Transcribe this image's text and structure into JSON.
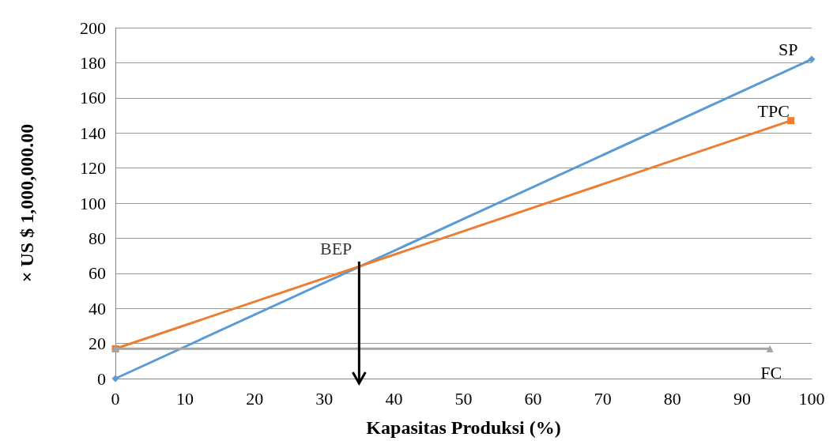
{
  "chart_data": {
    "type": "line",
    "xlabel": "Kapasitas Produksi (%)",
    "ylabel": "× US $ 1,000,000.00",
    "series": [
      {
        "name": "SP",
        "color": "#5b9bd5",
        "x": [
          0,
          100
        ],
        "values": [
          0,
          182
        ],
        "marker": "diamond"
      },
      {
        "name": "TPC",
        "color": "#ed7d31",
        "x": [
          0,
          97
        ],
        "values": [
          17,
          147
        ],
        "marker": "square"
      },
      {
        "name": "FC",
        "color": "#a5a5a5",
        "x": [
          0,
          94
        ],
        "values": [
          17,
          17
        ],
        "marker": "triangle"
      }
    ],
    "annotations": [
      {
        "text": "BEP",
        "x": 35,
        "y": 64
      }
    ],
    "xlim": [
      0,
      100
    ],
    "xticks": [
      0,
      10,
      20,
      30,
      40,
      50,
      60,
      70,
      80,
      90,
      100
    ],
    "ylim": [
      0,
      200
    ],
    "yticks": [
      0,
      20,
      40,
      60,
      80,
      100,
      120,
      140,
      160,
      180,
      200
    ],
    "grid": "y",
    "legend": false,
    "line_style": "solid"
  }
}
